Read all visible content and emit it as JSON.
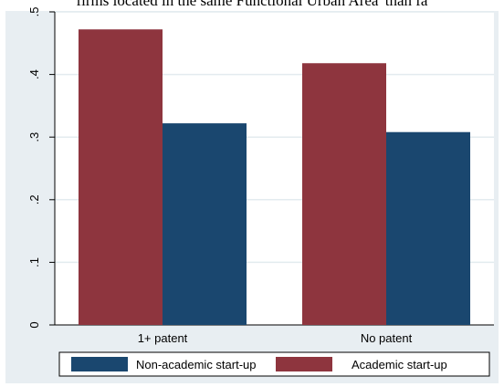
{
  "caption": "firms located in the same Functional Urban Area' than fa",
  "chart_data": {
    "type": "bar",
    "categories": [
      "1+ patent",
      "No patent"
    ],
    "series": [
      {
        "name": "Academic start-up",
        "values": [
          0.472,
          0.418
        ],
        "color": "#8e353e"
      },
      {
        "name": "Non-academic start-up",
        "values": [
          0.322,
          0.308
        ],
        "color": "#1a476f"
      }
    ],
    "ylim": [
      0,
      0.5
    ],
    "yticks": [
      0,
      0.1,
      0.2,
      0.3,
      0.4,
      0.5
    ],
    "ytick_labels": [
      "0",
      ".1",
      ".2",
      ".3",
      ".4",
      ".5"
    ],
    "grid": true,
    "legend": {
      "position": "bottom",
      "order": [
        "Non-academic start-up",
        "Academic start-up"
      ]
    },
    "title": "",
    "xlabel": "",
    "ylabel": ""
  }
}
